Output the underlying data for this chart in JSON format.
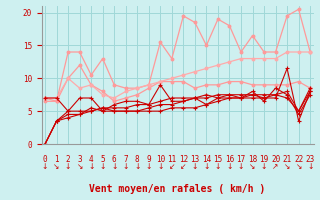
{
  "bg_color": "#cef0f0",
  "grid_color": "#a0d8d8",
  "xlabel": "Vent moyen/en rafales ( km/h )",
  "x": [
    0,
    1,
    2,
    3,
    4,
    5,
    6,
    7,
    8,
    9,
    10,
    11,
    12,
    13,
    14,
    15,
    16,
    17,
    18,
    19,
    20,
    21,
    22,
    23
  ],
  "ylim": [
    0,
    21
  ],
  "yticks": [
    0,
    5,
    10,
    15,
    20
  ],
  "series": [
    {
      "color": "#ff9999",
      "lw": 0.9,
      "marker": "o",
      "ms": 2.0,
      "y": [
        7.0,
        6.5,
        14.0,
        14.0,
        10.5,
        13.0,
        9.0,
        8.5,
        8.5,
        9.0,
        15.5,
        13.0,
        19.5,
        18.5,
        15.0,
        19.0,
        18.0,
        14.0,
        16.5,
        14.0,
        14.0,
        19.5,
        20.5,
        14.0
      ]
    },
    {
      "color": "#ff9999",
      "lw": 0.9,
      "marker": "o",
      "ms": 2.0,
      "y": [
        6.5,
        6.5,
        10.0,
        12.0,
        9.0,
        8.0,
        6.5,
        7.0,
        7.5,
        8.5,
        9.5,
        9.5,
        9.5,
        8.5,
        9.0,
        9.0,
        9.5,
        9.5,
        9.0,
        9.0,
        9.0,
        9.0,
        9.5,
        8.5
      ]
    },
    {
      "color": "#ffaaaa",
      "lw": 0.9,
      "marker": "o",
      "ms": 2.0,
      "y": [
        7.0,
        7.0,
        10.0,
        8.5,
        9.0,
        7.5,
        7.0,
        8.0,
        8.5,
        9.0,
        9.5,
        10.0,
        10.5,
        11.0,
        11.5,
        12.0,
        12.5,
        13.0,
        13.0,
        13.0,
        13.0,
        14.0,
        14.0,
        14.0
      ]
    },
    {
      "color": "#cc0000",
      "lw": 0.8,
      "marker": "+",
      "ms": 3.0,
      "y": [
        7.0,
        7.0,
        5.0,
        7.0,
        7.0,
        5.0,
        6.0,
        6.5,
        6.5,
        6.0,
        9.0,
        6.5,
        6.5,
        7.0,
        6.0,
        7.0,
        7.5,
        7.0,
        8.0,
        6.5,
        8.5,
        7.5,
        4.5,
        7.5
      ]
    },
    {
      "color": "#cc0000",
      "lw": 0.8,
      "marker": "+",
      "ms": 3.0,
      "y": [
        0.0,
        3.5,
        5.0,
        5.0,
        5.0,
        5.5,
        5.0,
        5.0,
        5.0,
        5.0,
        5.0,
        5.5,
        5.5,
        5.5,
        6.0,
        6.5,
        7.0,
        7.0,
        7.0,
        7.0,
        7.0,
        11.5,
        3.5,
        8.0
      ]
    },
    {
      "color": "#cc0000",
      "lw": 0.8,
      "marker": "+",
      "ms": 3.0,
      "y": [
        0.0,
        3.5,
        4.5,
        4.5,
        5.5,
        5.0,
        5.0,
        5.0,
        5.0,
        5.5,
        6.0,
        6.0,
        6.5,
        7.0,
        7.5,
        7.0,
        7.0,
        7.0,
        7.5,
        7.0,
        7.5,
        7.0,
        5.0,
        8.0
      ]
    },
    {
      "color": "#cc0000",
      "lw": 0.8,
      "marker": "+",
      "ms": 3.0,
      "y": [
        0.0,
        3.5,
        4.0,
        4.5,
        5.0,
        5.5,
        5.5,
        5.5,
        6.0,
        6.0,
        6.5,
        7.0,
        7.0,
        7.0,
        7.0,
        7.5,
        7.5,
        7.5,
        7.5,
        7.5,
        7.5,
        8.0,
        5.0,
        8.5
      ]
    }
  ],
  "arrow_chars": [
    "↓",
    "↘",
    "↓",
    "↘",
    "↓",
    "↓",
    "↓",
    "↓",
    "↓",
    "↓",
    "↓",
    "↙",
    "↙",
    "↓",
    "↓",
    "↓",
    "↓",
    "↓",
    "↘",
    "↓",
    "↗",
    "↘",
    "↘",
    "↓"
  ],
  "tick_label_fontsize": 5.5,
  "xlabel_fontsize": 7.0
}
